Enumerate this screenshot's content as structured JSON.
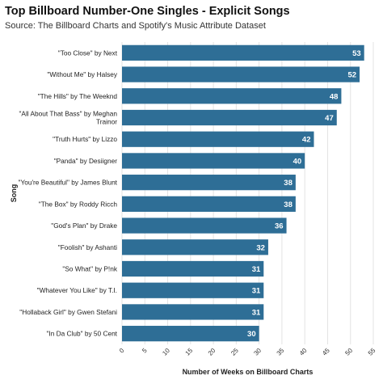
{
  "chart_data": {
    "type": "bar",
    "orientation": "horizontal",
    "title": "Top Billboard Number-One Singles - Explicit Songs",
    "subtitle": "Source: The Billboard Charts and Spotify's Music Attribute Dataset",
    "xlabel": "Number of Weeks on Billboard Charts",
    "ylabel": "Song",
    "xlim": [
      0,
      55
    ],
    "xticks": [
      0,
      5,
      10,
      15,
      20,
      25,
      30,
      35,
      40,
      45,
      50,
      55
    ],
    "grid": true,
    "bar_color": "#2e6e96",
    "categories": [
      [
        "\"Too Close\" by Next"
      ],
      [
        "\"Without Me\" by Halsey"
      ],
      [
        "\"The Hills\" by The Weeknd"
      ],
      [
        "\"All About That Bass\" by Meghan",
        "Trainor"
      ],
      [
        "\"Truth Hurts\" by Lizzo"
      ],
      [
        "\"Panda\" by Desiigner"
      ],
      [
        "\"You're Beautiful\" by James Blunt"
      ],
      [
        "\"The Box\" by Roddy Ricch"
      ],
      [
        "\"God's Plan\" by Drake"
      ],
      [
        "\"Foolish\" by Ashanti"
      ],
      [
        "\"So What\" by P!nk"
      ],
      [
        "\"Whatever You Like\" by T.I."
      ],
      [
        "\"Hollaback Girl\" by Gwen Stefani"
      ],
      [
        "\"In Da Club\" by 50 Cent"
      ]
    ],
    "values": [
      53,
      52,
      48,
      47,
      42,
      40,
      38,
      38,
      36,
      32,
      31,
      31,
      31,
      30
    ]
  }
}
